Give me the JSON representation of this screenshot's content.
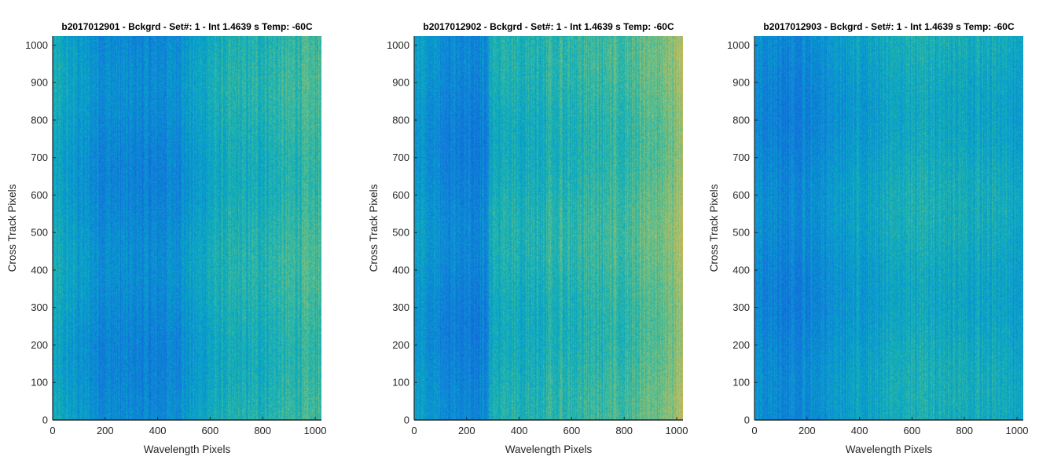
{
  "chart_data": [
    {
      "type": "heatmap",
      "title": "b2017012901 - Bckgrd - Set#: 1 - Int 1.4639 s Temp: -60C",
      "xlabel": "Wavelength Pixels",
      "ylabel": "Cross Track Pixels",
      "xlim": [
        0,
        1024
      ],
      "ylim": [
        0,
        1024
      ],
      "xticks": [
        0,
        200,
        400,
        600,
        800,
        1000
      ],
      "yticks": [
        0,
        100,
        200,
        300,
        400,
        500,
        600,
        700,
        800,
        900,
        1000
      ],
      "colormap": "parula",
      "grid": false,
      "column_profile": {
        "x": [
          0,
          200,
          400,
          500,
          600,
          800,
          1024
        ],
        "level": [
          0.45,
          0.34,
          0.32,
          0.38,
          0.46,
          0.5,
          0.56
        ]
      }
    },
    {
      "type": "heatmap",
      "title": "b2017012902 - Bckgrd - Set#: 1 - Int 1.4639 s Temp: -60C",
      "xlabel": "Wavelength Pixels",
      "ylabel": "Cross Track Pixels",
      "xlim": [
        0,
        1024
      ],
      "ylim": [
        0,
        1024
      ],
      "xticks": [
        0,
        200,
        400,
        600,
        800,
        1000
      ],
      "yticks": [
        0,
        100,
        200,
        300,
        400,
        500,
        600,
        700,
        800,
        900,
        1000
      ],
      "colormap": "parula",
      "grid": false,
      "column_profile": {
        "x": [
          0,
          150,
          270,
          290,
          500,
          800,
          950,
          1024
        ],
        "level": [
          0.42,
          0.32,
          0.32,
          0.47,
          0.5,
          0.55,
          0.62,
          0.7
        ]
      }
    },
    {
      "type": "heatmap",
      "title": "b2017012903 - Bckgrd - Set#: 1 - Int 1.4639 s Temp: -60C",
      "xlabel": "Wavelength Pixels",
      "ylabel": "Cross Track Pixels",
      "xlim": [
        0,
        1024
      ],
      "ylim": [
        0,
        1024
      ],
      "xticks": [
        0,
        200,
        400,
        600,
        800,
        1000
      ],
      "yticks": [
        0,
        100,
        200,
        300,
        400,
        500,
        600,
        700,
        800,
        900,
        1000
      ],
      "colormap": "parula",
      "grid": false,
      "column_profile": {
        "x": [
          0,
          150,
          300,
          600,
          800,
          1024
        ],
        "level": [
          0.36,
          0.3,
          0.38,
          0.48,
          0.46,
          0.44
        ]
      }
    }
  ]
}
